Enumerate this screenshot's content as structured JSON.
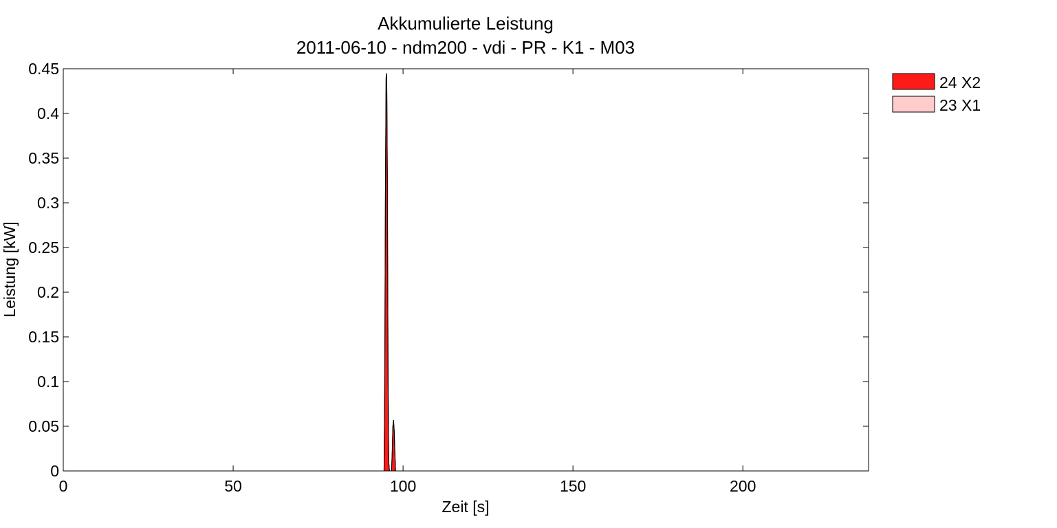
{
  "chart_data": {
    "type": "area",
    "title": "Akkumulierte Leistung",
    "subtitle": "2011-06-10 - ndm200 - vdi - PR - K1 - M03",
    "xlabel": "Zeit [s]",
    "ylabel": "Leistung [kW]",
    "xlim": [
      0,
      237
    ],
    "ylim": [
      0,
      0.45
    ],
    "xticks": [
      0,
      50,
      100,
      150,
      200
    ],
    "yticks": [
      0,
      0.05,
      0.1,
      0.15,
      0.2,
      0.25,
      0.3,
      0.35,
      0.4,
      0.45
    ],
    "xtick_labels": [
      "0",
      "50",
      "100",
      "150",
      "200"
    ],
    "ytick_labels": [
      "0",
      "0.05",
      "0.1",
      "0.15",
      "0.2",
      "0.25",
      "0.3",
      "0.35",
      "0.4",
      "0.45"
    ],
    "grid": false,
    "stacked": true,
    "legend_position": "outside-top-right",
    "x": [
      0,
      94.4,
      94.6,
      94.8,
      95.0,
      95.2,
      95.4,
      95.6,
      95.8,
      96.0,
      96.2,
      96.6,
      96.8,
      97.0,
      97.2,
      97.4,
      97.6,
      97.8,
      98.0,
      237
    ],
    "series": [
      {
        "name": "24 X2",
        "color": "#ff1a1a",
        "values": [
          0,
          0,
          0.09,
          0.31,
          0.44,
          0.445,
          0.32,
          0.1,
          0.01,
          0,
          0,
          0,
          0.02,
          0.05,
          0.057,
          0.045,
          0.02,
          0,
          0,
          0
        ]
      },
      {
        "name": "23 X1",
        "color": "#ffcccc",
        "values": [
          0,
          0,
          0,
          0,
          0,
          0,
          0,
          0,
          0,
          0,
          0,
          0,
          0,
          0,
          0,
          0,
          0,
          0,
          0,
          0
        ]
      }
    ]
  }
}
